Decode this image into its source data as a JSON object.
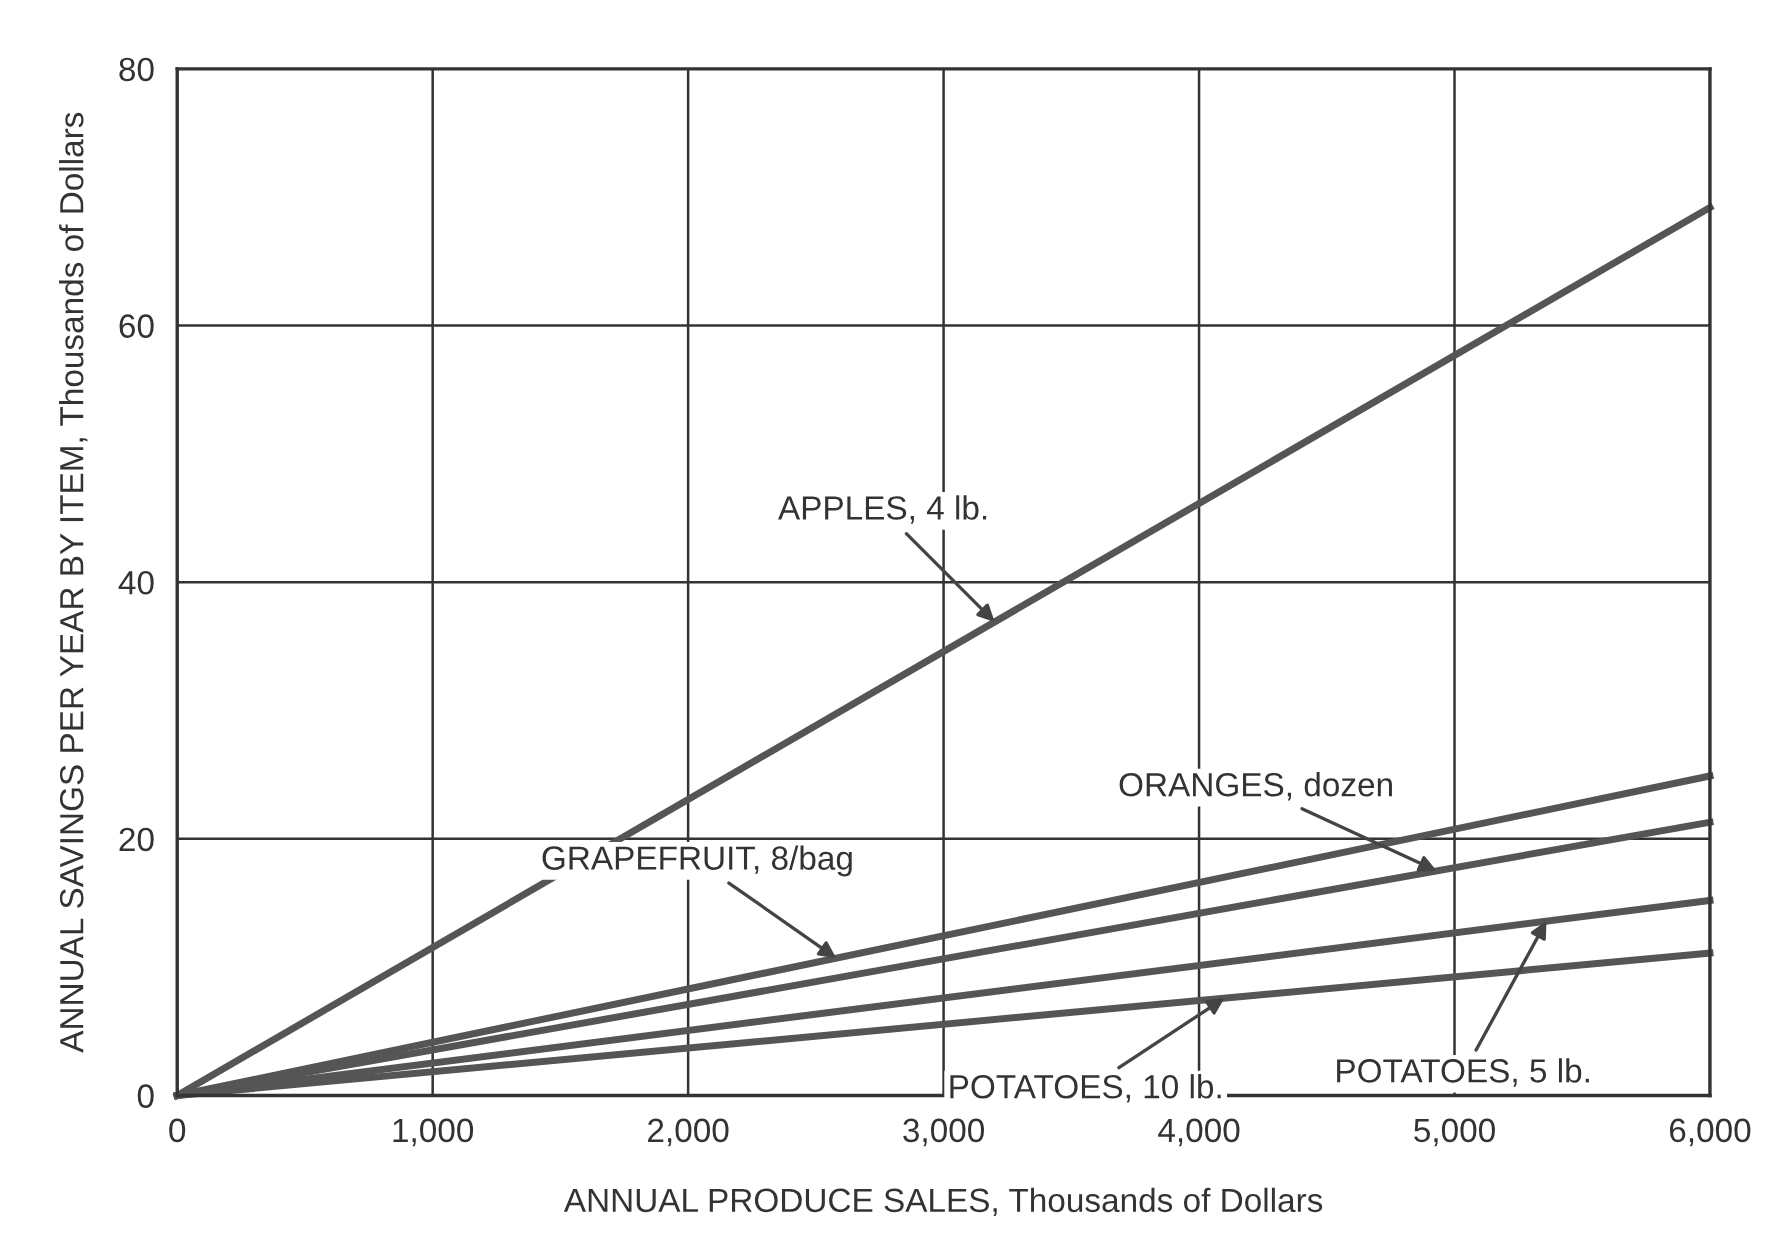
{
  "chart_data": {
    "type": "line",
    "xlabel": "ANNUAL PRODUCE SALES, Thousands of Dollars",
    "ylabel": "ANNUAL SAVINGS PER YEAR BY ITEM, Thousands of Dollars",
    "x": [
      0,
      6000
    ],
    "series": [
      {
        "color": "#555555",
        "values": [
          0,
          69.2
        ]
      },
      {
        "color": "#555555",
        "values": [
          0,
          24.9
        ]
      },
      {
        "color": "#555555",
        "values": [
          0,
          21.3
        ]
      },
      {
        "color": "#555555",
        "values": [
          0,
          15.2
        ]
      },
      {
        "color": "#555555",
        "values": [
          0,
          11.1
        ]
      }
    ],
    "annotations": [
      {
        "text": "APPLES, 4 lb.",
        "x": 3200,
        "y": 36.9
      },
      {
        "text": "GRAPEFRUIT, 8/bag",
        "x": 2580,
        "y": 10.7
      },
      {
        "text": "ORANGES, dozen",
        "x": 4930,
        "y": 17.5
      },
      {
        "text": "POTATOES, 5 lb.",
        "x": 5360,
        "y": 13.6
      },
      {
        "text": "POTATOES, 10 lb.",
        "x": 4100,
        "y": 7.6
      }
    ],
    "xlim": [
      0,
      6000
    ],
    "ylim": [
      0,
      80
    ],
    "xticks": [
      0,
      {
        "value": 1000,
        "label": "1,000"
      },
      {
        "value": 2000,
        "label": "2,000"
      },
      {
        "value": 3000,
        "label": "3,000"
      },
      {
        "value": 4000,
        "label": "4,000"
      },
      {
        "value": 5000,
        "label": "5,000"
      },
      {
        "value": 6000,
        "label": "6,000"
      }
    ],
    "yticks": [
      0,
      20,
      40,
      60,
      80
    ],
    "grid": true,
    "marker": "none",
    "line_style": "solid"
  }
}
